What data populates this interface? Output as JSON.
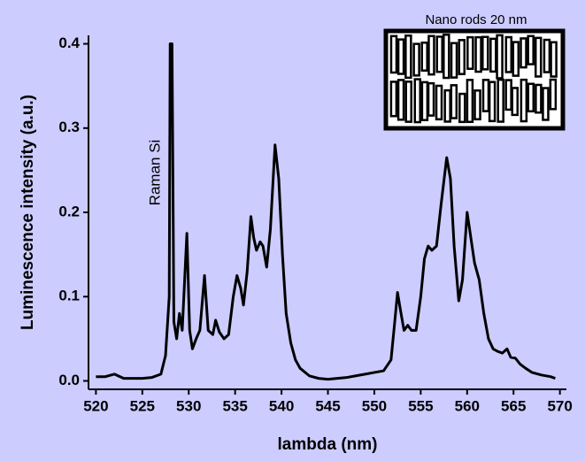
{
  "chart_data": {
    "type": "line",
    "x_label": "lambda (nm)",
    "y_label": "Luminescence intensity (a.u.)",
    "annotations": [
      "Raman Si",
      "Nano rods 20 nm"
    ],
    "xlim": [
      519.2,
      570.7
    ],
    "ylim": [
      -0.01,
      0.41
    ],
    "xticks": [
      520,
      525,
      530,
      535,
      540,
      545,
      550,
      555,
      560,
      565,
      570
    ],
    "yticks": [
      {
        "value": 0,
        "label": "0.0"
      },
      0.1,
      0.2,
      0.3,
      0.4
    ],
    "color": "#000000",
    "x": [
      520,
      521,
      522,
      523,
      524,
      525,
      526,
      527,
      527.5,
      527.9,
      528.0,
      528.2,
      528.4,
      528.7,
      529.0,
      529.3,
      529.8,
      530.1,
      530.4,
      530.8,
      531.2,
      531.7,
      532.1,
      532.6,
      532.9,
      533.3,
      533.8,
      534.3,
      534.8,
      535.2,
      535.6,
      535.9,
      536.3,
      536.7,
      537.0,
      537.3,
      537.7,
      538.0,
      538.4,
      538.8,
      539.3,
      539.7,
      540.1,
      540.5,
      541,
      541.5,
      542,
      543,
      544,
      545,
      546,
      547,
      548,
      549,
      550,
      551,
      551.8,
      552.2,
      552.5,
      552.8,
      553.2,
      553.6,
      554,
      554.5,
      555,
      555.4,
      555.8,
      556.2,
      556.7,
      557.2,
      557.8,
      558.2,
      558.6,
      559.1,
      559.5,
      560.0,
      560.4,
      560.8,
      561.3,
      561.8,
      562.3,
      562.8,
      563.3,
      563.8,
      564.3,
      564.7,
      565.2,
      565.7,
      566.3,
      567,
      568,
      569,
      569.5
    ],
    "values": [
      0.005,
      0.005,
      0.008,
      0.003,
      0.003,
      0.003,
      0.004,
      0.008,
      0.03,
      0.1,
      0.4,
      0.4,
      0.07,
      0.05,
      0.08,
      0.06,
      0.175,
      0.06,
      0.038,
      0.05,
      0.06,
      0.125,
      0.06,
      0.055,
      0.072,
      0.058,
      0.05,
      0.055,
      0.1,
      0.125,
      0.11,
      0.09,
      0.13,
      0.195,
      0.17,
      0.155,
      0.165,
      0.16,
      0.135,
      0.18,
      0.28,
      0.24,
      0.15,
      0.08,
      0.045,
      0.025,
      0.015,
      0.006,
      0.003,
      0.002,
      0.003,
      0.004,
      0.006,
      0.008,
      0.01,
      0.012,
      0.025,
      0.07,
      0.105,
      0.085,
      0.06,
      0.066,
      0.06,
      0.06,
      0.1,
      0.145,
      0.16,
      0.155,
      0.16,
      0.21,
      0.265,
      0.24,
      0.16,
      0.095,
      0.12,
      0.2,
      0.17,
      0.14,
      0.12,
      0.08,
      0.05,
      0.038,
      0.035,
      0.033,
      0.038,
      0.028,
      0.027,
      0.02,
      0.015,
      0.01,
      0.007,
      0.005,
      0.003
    ]
  }
}
